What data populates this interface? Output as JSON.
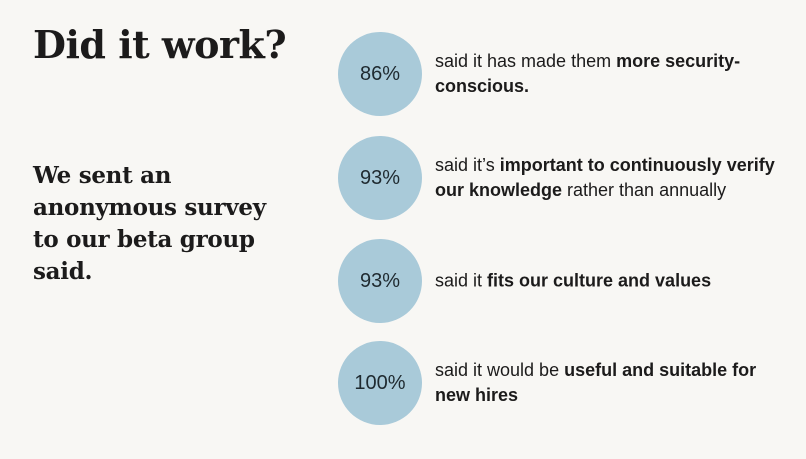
{
  "title": "Did it work?",
  "subtitle": "We sent an anonymous survey to our beta group said.",
  "accent_color": "#a9cad9",
  "stats": [
    {
      "value": "86%",
      "text_plain": "said it has made them ",
      "text_bold": "more security-conscious.",
      "text_after": ""
    },
    {
      "value": "93%",
      "text_plain": "said it’s ",
      "text_bold": "important to continuously verify our knowledge",
      "text_after": " rather than annually"
    },
    {
      "value": "93%",
      "text_plain": "said it ",
      "text_bold": "fits our culture and values",
      "text_after": ""
    },
    {
      "value": "100%",
      "text_plain": "said it would be ",
      "text_bold": "useful and suitable for new hires",
      "text_after": ""
    }
  ]
}
